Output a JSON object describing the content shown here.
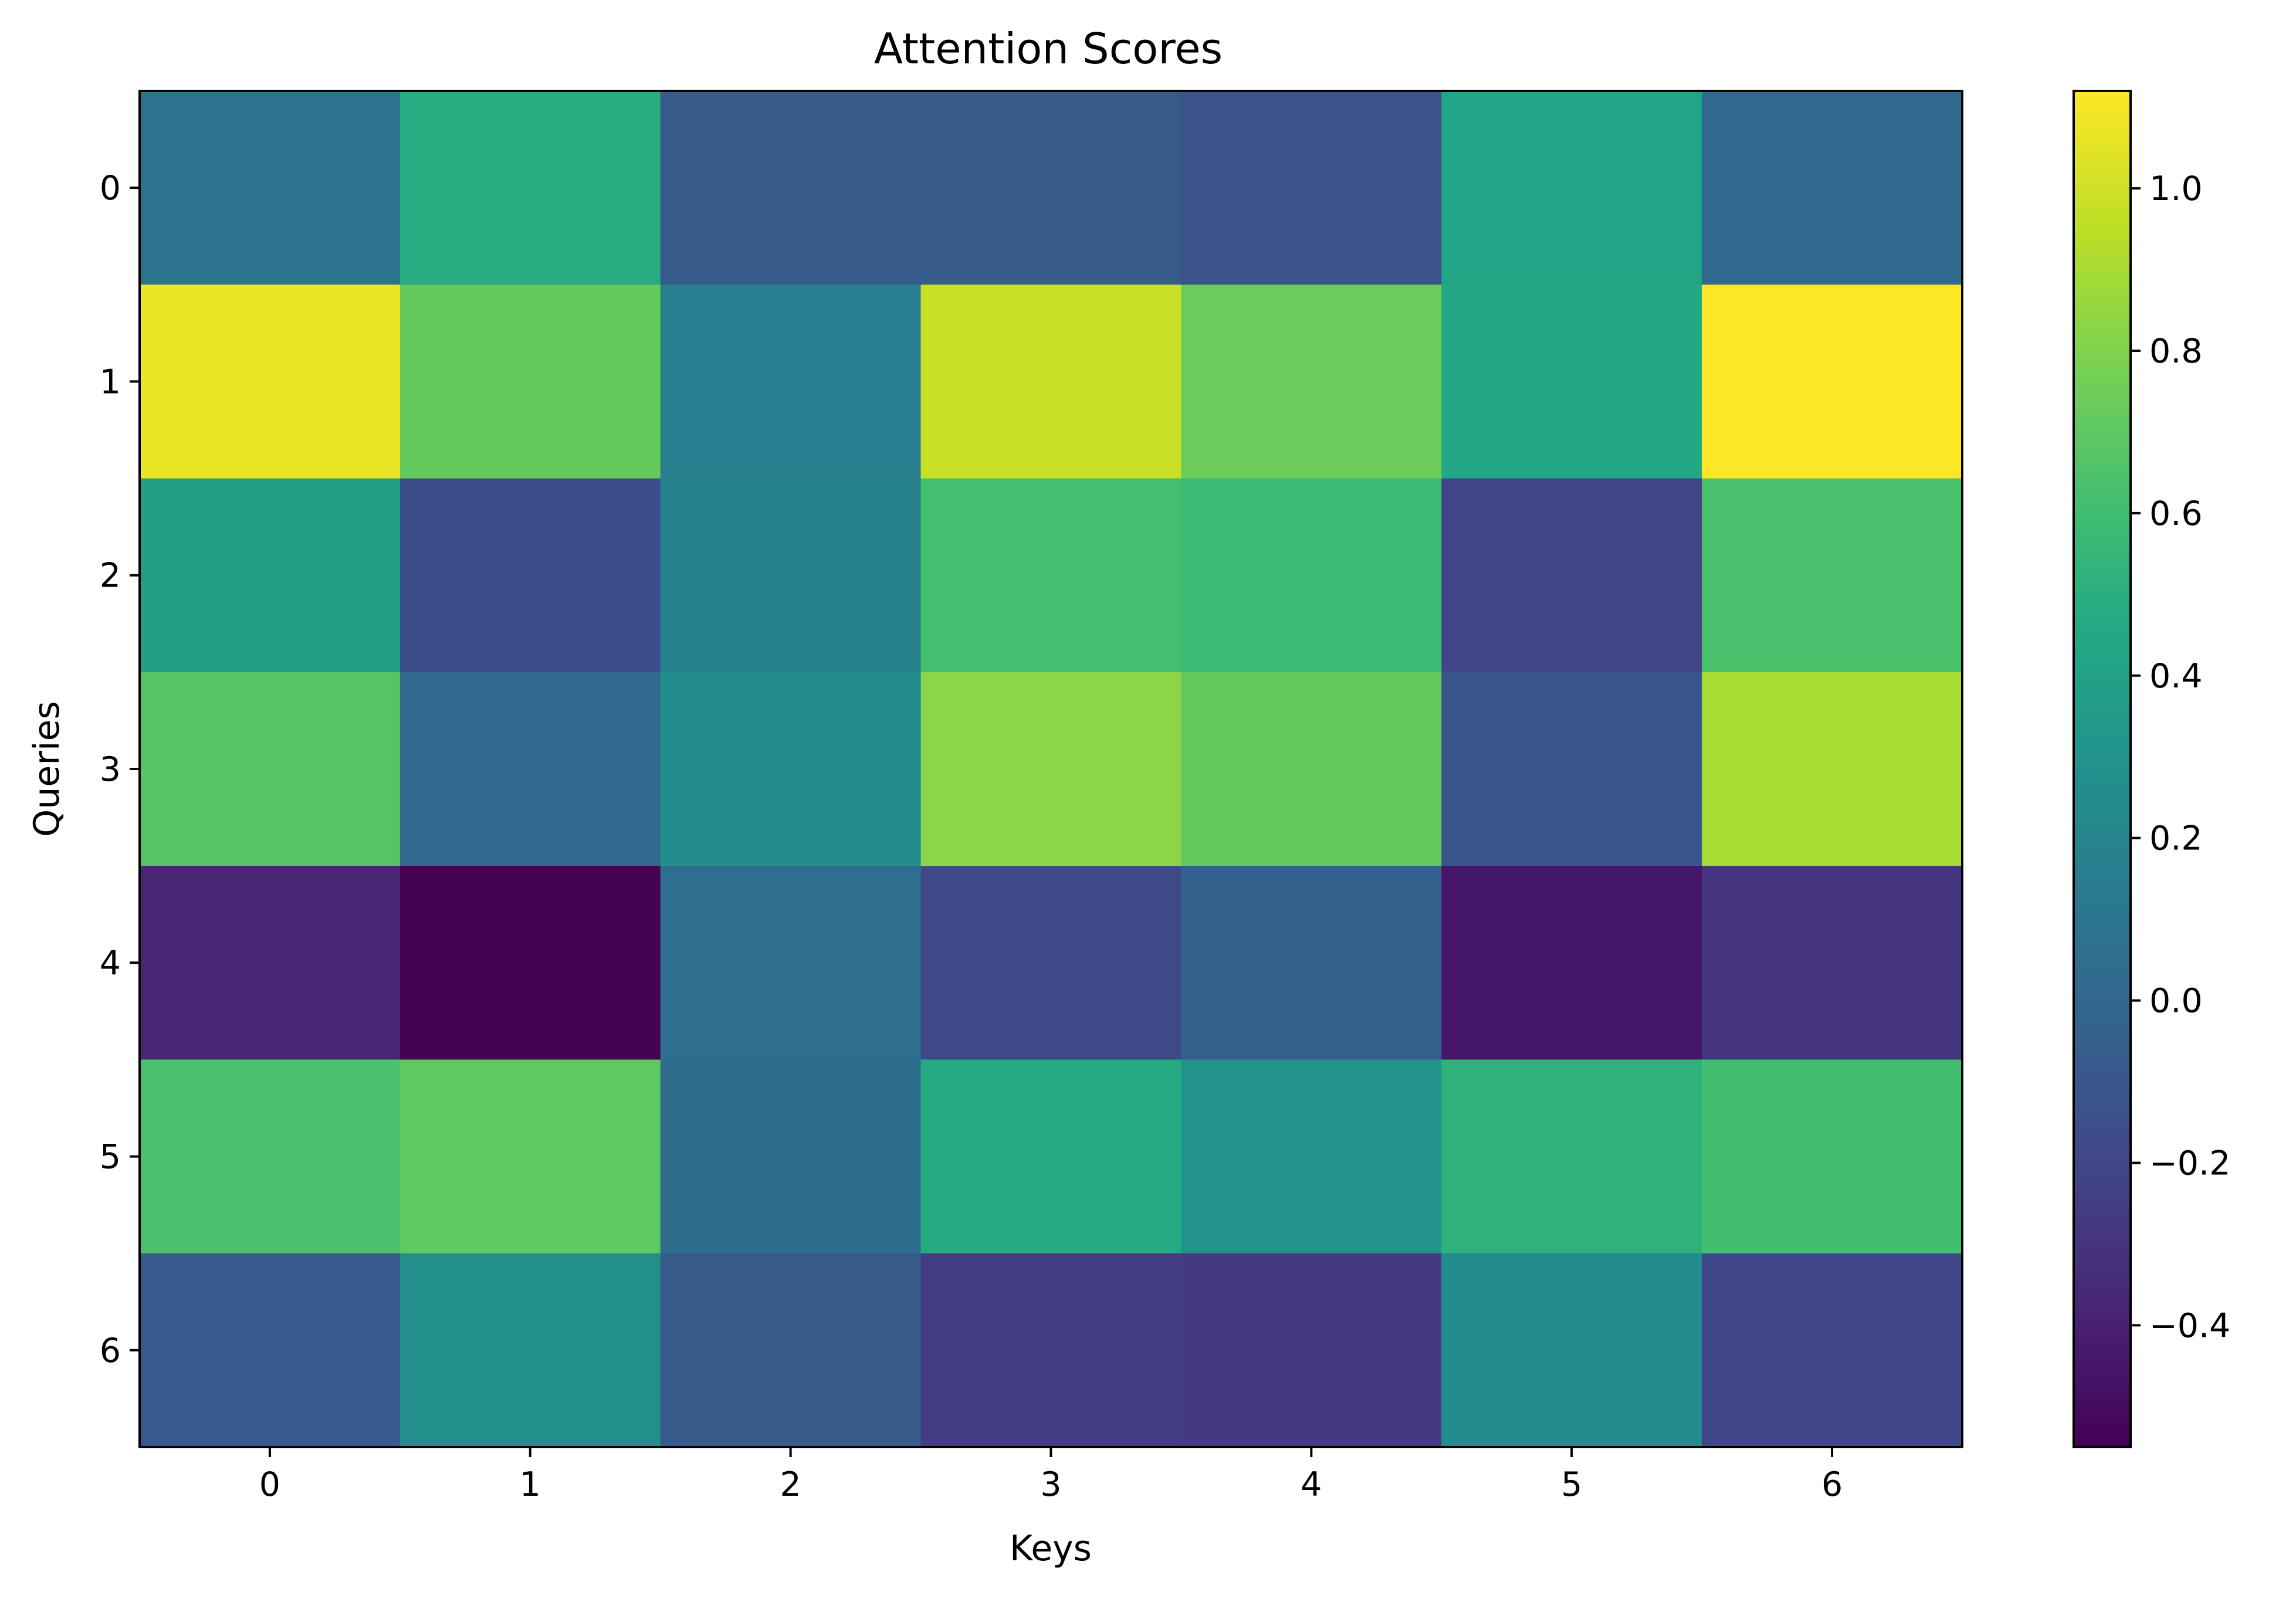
{
  "chart_data": {
    "type": "heatmap",
    "title": "Attention Scores",
    "xlabel": "Keys",
    "ylabel": "Queries",
    "x_categories": [
      "0",
      "1",
      "2",
      "3",
      "4",
      "5",
      "6"
    ],
    "y_categories": [
      "0",
      "1",
      "2",
      "3",
      "4",
      "5",
      "6"
    ],
    "values": [
      [
        0.09,
        0.48,
        -0.07,
        -0.07,
        -0.13,
        0.42,
        0.02
      ],
      [
        1.07,
        0.72,
        0.16,
        0.98,
        0.74,
        0.45,
        1.12
      ],
      [
        0.38,
        -0.16,
        0.18,
        0.62,
        0.58,
        -0.21,
        0.64
      ],
      [
        0.67,
        0.02,
        0.26,
        0.83,
        0.72,
        -0.11,
        0.9
      ],
      [
        -0.38,
        -0.55,
        0.05,
        -0.18,
        -0.05,
        -0.45,
        -0.3
      ],
      [
        0.64,
        0.7,
        0.04,
        0.47,
        0.3,
        0.52,
        0.61
      ],
      [
        -0.08,
        0.27,
        -0.07,
        -0.25,
        -0.27,
        0.26,
        -0.2
      ]
    ],
    "colormap": "viridis",
    "colorbar": {
      "vmin": -0.55,
      "vmax": 1.12,
      "ticks": [
        1.0,
        0.8,
        0.6,
        0.4,
        0.2,
        0.0,
        -0.2,
        -0.4
      ],
      "tick_labels": [
        "1.0",
        "0.8",
        "0.6",
        "0.4",
        "0.2",
        "0.0",
        "−0.2",
        "−0.4"
      ]
    },
    "grid": false
  }
}
